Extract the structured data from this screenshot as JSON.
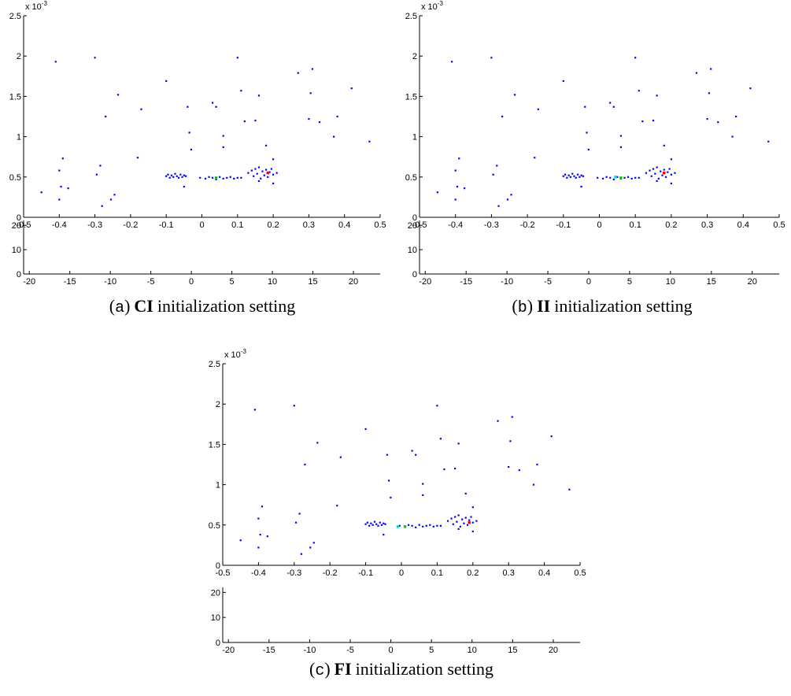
{
  "chart_data": [
    {
      "type": "scatter",
      "xlim": [
        -0.5,
        0.5
      ],
      "ylim": [
        0,
        2.5
      ],
      "xticks": [
        -0.5,
        -0.4,
        -0.3,
        -0.2,
        -0.1,
        0,
        0.1,
        0.2,
        0.3,
        0.4,
        0.5
      ],
      "yticks": [
        0,
        0.5,
        1,
        1.5,
        2,
        2.5
      ],
      "y_multiplier": {
        "base": "x 10",
        "exponent": "-3"
      },
      "series": [
        {
          "color": "#0000ff",
          "x": [
            -0.45,
            -0.41,
            -0.4,
            -0.4,
            -0.395,
            -0.39,
            -0.375,
            -0.3,
            -0.295,
            -0.285,
            -0.28,
            -0.27,
            -0.255,
            -0.245,
            -0.235,
            -0.18,
            -0.17,
            -0.1,
            -0.05,
            -0.04,
            -0.035,
            -0.03,
            0.03,
            0.04,
            0.06,
            0.06,
            0.1,
            0.11,
            0.12,
            0.15,
            0.16,
            0.18,
            0.2,
            0.2,
            0.27,
            0.3,
            0.305,
            0.31,
            0.33,
            0.37,
            0.38,
            0.42,
            0.47,
            -0.1,
            -0.095,
            -0.09,
            -0.085,
            -0.08,
            -0.075,
            -0.07,
            -0.065,
            -0.06,
            -0.055,
            -0.05,
            -0.045,
            -0.005,
            0.01,
            0.02,
            0.03,
            0.04,
            0.05,
            0.06,
            0.07,
            0.08,
            0.09,
            0.1,
            0.11,
            0.13,
            0.14,
            0.145,
            0.15,
            0.155,
            0.16,
            0.165,
            0.17,
            0.175,
            0.18,
            0.185,
            0.19,
            0.195,
            0.2,
            0.21,
            0.16
          ],
          "values": [
            0.31,
            1.93,
            0.58,
            0.22,
            0.38,
            0.73,
            0.36,
            1.98,
            0.53,
            0.64,
            0.14,
            1.25,
            0.22,
            0.28,
            1.52,
            0.74,
            1.34,
            1.69,
            0.38,
            1.37,
            1.05,
            0.84,
            1.42,
            1.37,
            1.01,
            0.87,
            1.98,
            1.57,
            1.19,
            1.2,
            1.51,
            0.89,
            0.72,
            0.42,
            1.79,
            1.22,
            1.54,
            1.84,
            1.18,
            1.0,
            1.25,
            1.6,
            0.94,
            0.51,
            0.53,
            0.49,
            0.52,
            0.5,
            0.54,
            0.51,
            0.49,
            0.53,
            0.5,
            0.52,
            0.51,
            0.49,
            0.48,
            0.5,
            0.49,
            0.47,
            0.5,
            0.48,
            0.49,
            0.5,
            0.48,
            0.49,
            0.49,
            0.55,
            0.58,
            0.51,
            0.6,
            0.54,
            0.62,
            0.48,
            0.57,
            0.52,
            0.59,
            0.5,
            0.56,
            0.6,
            0.53,
            0.55,
            0.45
          ]
        },
        {
          "color": "#00cc00",
          "x": [
            0.04
          ],
          "values": [
            0.49
          ]
        },
        {
          "color": "#ff0000",
          "x": [
            0.185
          ],
          "values": [
            0.55
          ]
        }
      ],
      "lower": {
        "xlim": [
          -20.7,
          23.3
        ],
        "ylim": [
          0,
          22
        ],
        "xticks": [
          -20,
          -15,
          -10,
          -5,
          0,
          5,
          10,
          15,
          20
        ],
        "yticks": [
          0,
          10,
          20
        ]
      },
      "caption": {
        "open": "(",
        "letter": "a",
        "close": ")",
        "bold": "CI",
        "rest": "initialization setting"
      }
    },
    {
      "type": "scatter",
      "xlim": [
        -0.5,
        0.5
      ],
      "ylim": [
        0,
        2.5
      ],
      "xticks": [
        -0.5,
        -0.4,
        -0.3,
        -0.2,
        -0.1,
        0,
        0.1,
        0.2,
        0.3,
        0.4,
        0.5
      ],
      "yticks": [
        0,
        0.5,
        1,
        1.5,
        2,
        2.5
      ],
      "y_multiplier": {
        "base": "x 10",
        "exponent": "-3"
      },
      "series": [
        {
          "color": "#0000ff",
          "x": [
            -0.45,
            -0.41,
            -0.4,
            -0.4,
            -0.395,
            -0.39,
            -0.375,
            -0.3,
            -0.295,
            -0.285,
            -0.28,
            -0.27,
            -0.255,
            -0.245,
            -0.235,
            -0.18,
            -0.17,
            -0.1,
            -0.05,
            -0.04,
            -0.035,
            -0.03,
            0.03,
            0.04,
            0.06,
            0.06,
            0.1,
            0.11,
            0.12,
            0.15,
            0.16,
            0.18,
            0.2,
            0.2,
            0.27,
            0.3,
            0.305,
            0.31,
            0.33,
            0.37,
            0.38,
            0.42,
            0.47,
            -0.1,
            -0.095,
            -0.09,
            -0.085,
            -0.08,
            -0.075,
            -0.07,
            -0.065,
            -0.06,
            -0.055,
            -0.05,
            -0.045,
            -0.005,
            0.01,
            0.02,
            0.03,
            0.04,
            0.05,
            0.06,
            0.07,
            0.08,
            0.09,
            0.1,
            0.11,
            0.13,
            0.14,
            0.145,
            0.15,
            0.155,
            0.16,
            0.165,
            0.17,
            0.175,
            0.18,
            0.185,
            0.19,
            0.195,
            0.2,
            0.21,
            0.16
          ],
          "values": [
            0.31,
            1.93,
            0.58,
            0.22,
            0.38,
            0.73,
            0.36,
            1.98,
            0.53,
            0.64,
            0.14,
            1.25,
            0.22,
            0.28,
            1.52,
            0.74,
            1.34,
            1.69,
            0.38,
            1.37,
            1.05,
            0.84,
            1.42,
            1.37,
            1.01,
            0.87,
            1.98,
            1.57,
            1.19,
            1.2,
            1.51,
            0.89,
            0.72,
            0.42,
            1.79,
            1.22,
            1.54,
            1.84,
            1.18,
            1.0,
            1.25,
            1.6,
            0.94,
            0.51,
            0.53,
            0.49,
            0.52,
            0.5,
            0.54,
            0.51,
            0.49,
            0.53,
            0.5,
            0.52,
            0.51,
            0.49,
            0.48,
            0.5,
            0.49,
            0.47,
            0.5,
            0.48,
            0.49,
            0.5,
            0.48,
            0.49,
            0.49,
            0.55,
            0.58,
            0.51,
            0.6,
            0.54,
            0.62,
            0.48,
            0.57,
            0.52,
            0.59,
            0.5,
            0.56,
            0.6,
            0.53,
            0.55,
            0.45
          ]
        },
        {
          "color": "#00dddd",
          "x": [
            0.045
          ],
          "values": [
            0.5
          ]
        },
        {
          "color": "#00cc00",
          "x": [
            0.06
          ],
          "values": [
            0.49
          ]
        },
        {
          "color": "#ff0000",
          "x": [
            0.18
          ],
          "values": [
            0.55
          ]
        }
      ],
      "lower": {
        "xlim": [
          -20.7,
          23.3
        ],
        "ylim": [
          0,
          22
        ],
        "xticks": [
          -20,
          -15,
          -10,
          -5,
          0,
          5,
          10,
          15,
          20
        ],
        "yticks": [
          0,
          10,
          20
        ]
      },
      "caption": {
        "open": "(",
        "letter": "b",
        "close": ")",
        "bold": "II",
        "rest": "initialization setting"
      }
    },
    {
      "type": "scatter",
      "xlim": [
        -0.5,
        0.5
      ],
      "ylim": [
        0,
        2.5
      ],
      "xticks": [
        -0.5,
        -0.4,
        -0.3,
        -0.2,
        -0.1,
        0,
        0.1,
        0.2,
        0.3,
        0.4,
        0.5
      ],
      "yticks": [
        0,
        0.5,
        1,
        1.5,
        2,
        2.5
      ],
      "y_multiplier": {
        "base": "x 10",
        "exponent": "-3"
      },
      "series": [
        {
          "color": "#0000ff",
          "x": [
            -0.45,
            -0.41,
            -0.4,
            -0.4,
            -0.395,
            -0.39,
            -0.375,
            -0.3,
            -0.295,
            -0.285,
            -0.28,
            -0.27,
            -0.255,
            -0.245,
            -0.235,
            -0.18,
            -0.17,
            -0.1,
            -0.05,
            -0.04,
            -0.035,
            -0.03,
            0.03,
            0.04,
            0.06,
            0.06,
            0.1,
            0.11,
            0.12,
            0.15,
            0.16,
            0.18,
            0.2,
            0.2,
            0.27,
            0.3,
            0.305,
            0.31,
            0.33,
            0.37,
            0.38,
            0.42,
            0.47,
            -0.1,
            -0.095,
            -0.09,
            -0.085,
            -0.08,
            -0.075,
            -0.07,
            -0.065,
            -0.06,
            -0.055,
            -0.05,
            -0.045,
            -0.005,
            0.01,
            0.02,
            0.03,
            0.04,
            0.05,
            0.06,
            0.07,
            0.08,
            0.09,
            0.1,
            0.11,
            0.13,
            0.14,
            0.145,
            0.15,
            0.155,
            0.16,
            0.165,
            0.17,
            0.175,
            0.18,
            0.185,
            0.19,
            0.195,
            0.2,
            0.21,
            0.16
          ],
          "values": [
            0.31,
            1.93,
            0.58,
            0.22,
            0.38,
            0.73,
            0.36,
            1.98,
            0.53,
            0.64,
            0.14,
            1.25,
            0.22,
            0.28,
            1.52,
            0.74,
            1.34,
            1.69,
            0.38,
            1.37,
            1.05,
            0.84,
            1.42,
            1.37,
            1.01,
            0.87,
            1.98,
            1.57,
            1.19,
            1.2,
            1.51,
            0.89,
            0.72,
            0.42,
            1.79,
            1.22,
            1.54,
            1.84,
            1.18,
            1.0,
            1.25,
            1.6,
            0.94,
            0.51,
            0.53,
            0.49,
            0.52,
            0.5,
            0.54,
            0.51,
            0.49,
            0.53,
            0.5,
            0.52,
            0.51,
            0.49,
            0.48,
            0.5,
            0.49,
            0.47,
            0.5,
            0.48,
            0.49,
            0.5,
            0.48,
            0.49,
            0.49,
            0.55,
            0.58,
            0.51,
            0.6,
            0.54,
            0.62,
            0.48,
            0.57,
            0.52,
            0.59,
            0.5,
            0.56,
            0.6,
            0.53,
            0.55,
            0.45
          ]
        },
        {
          "color": "#00dddd",
          "x": [
            -0.01
          ],
          "values": [
            0.48
          ]
        },
        {
          "color": "#00cc00",
          "x": [
            0.01
          ],
          "values": [
            0.48
          ]
        },
        {
          "color": "#ff0000",
          "x": [
            0.19
          ],
          "values": [
            0.53
          ]
        }
      ],
      "lower": {
        "xlim": [
          -20.7,
          23.3
        ],
        "ylim": [
          0,
          22
        ],
        "xticks": [
          -20,
          -15,
          -10,
          -5,
          0,
          5,
          10,
          15,
          20
        ],
        "yticks": [
          0,
          10,
          20
        ]
      },
      "caption": {
        "open": "(",
        "letter": "c",
        "close": ")",
        "bold": "FI",
        "rest": "initialization setting"
      }
    }
  ]
}
